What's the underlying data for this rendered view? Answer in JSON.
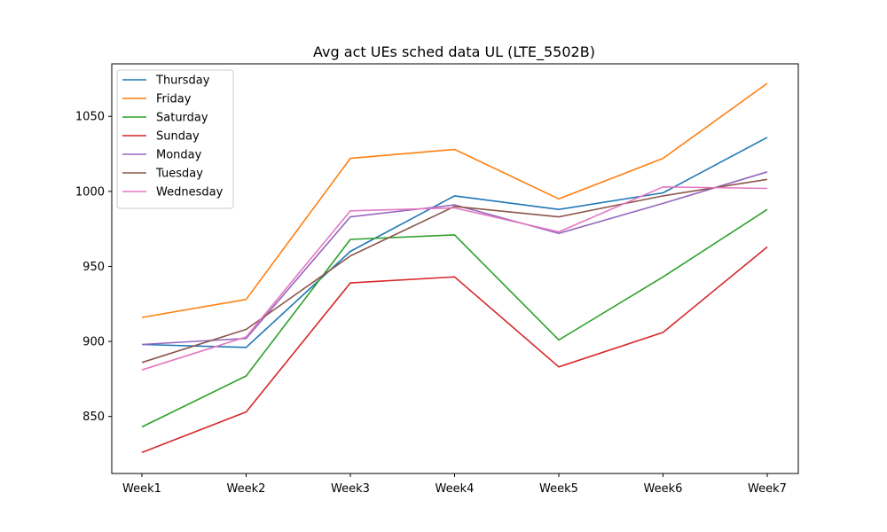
{
  "chart_data": {
    "type": "line",
    "title": "Avg act UEs sched data UL (LTE_5502B)",
    "xlabel": "",
    "ylabel": "",
    "categories": [
      "Week1",
      "Week2",
      "Week3",
      "Week4",
      "Week5",
      "Week6",
      "Week7"
    ],
    "ylim": [
      812,
      1085
    ],
    "yticks": [
      850,
      900,
      950,
      1000,
      1050
    ],
    "grid": false,
    "legend_position": "top-left",
    "series": [
      {
        "name": "Thursday",
        "color": "#1f77b4",
        "values": [
          898,
          896,
          960,
          997,
          988,
          999,
          1036
        ]
      },
      {
        "name": "Friday",
        "color": "#ff7f0e",
        "values": [
          916,
          928,
          1022,
          1028,
          995,
          1022,
          1072
        ]
      },
      {
        "name": "Saturday",
        "color": "#2ca02c",
        "values": [
          843,
          877,
          968,
          971,
          901,
          943,
          988
        ]
      },
      {
        "name": "Sunday",
        "color": "#d62728",
        "values": [
          826,
          853,
          939,
          943,
          883,
          906,
          963
        ]
      },
      {
        "name": "Monday",
        "color": "#9467bd",
        "values": [
          898,
          902,
          983,
          991,
          972,
          992,
          1013
        ]
      },
      {
        "name": "Tuesday",
        "color": "#8c564b",
        "values": [
          886,
          908,
          957,
          990,
          983,
          997,
          1008
        ]
      },
      {
        "name": "Wednesday",
        "color": "#e377c2",
        "values": [
          881,
          903,
          987,
          989,
          973,
          1003,
          1002
        ]
      }
    ]
  }
}
